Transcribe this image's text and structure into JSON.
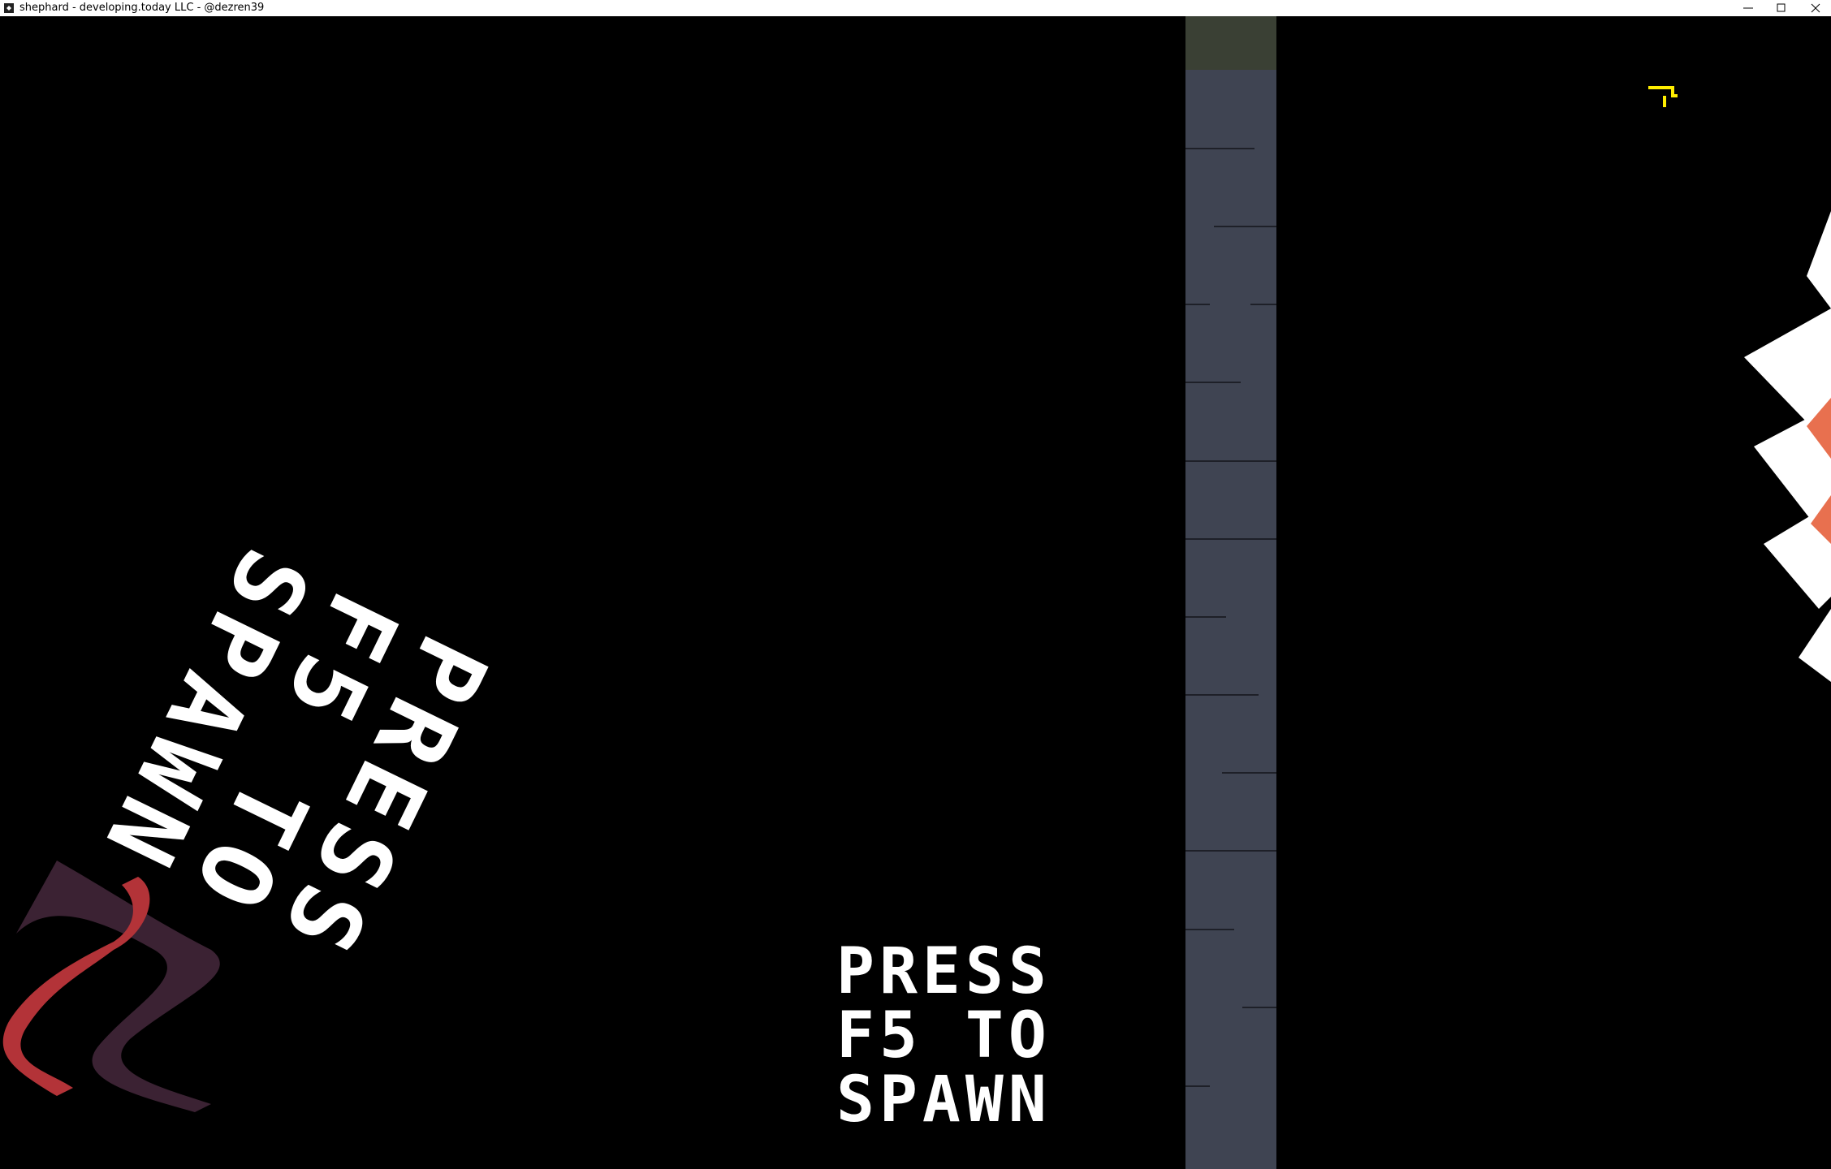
{
  "window": {
    "title": "shephard - developing.today LLC - @dezren39"
  },
  "prompt": {
    "lines": [
      "PRESS",
      "F5 TO",
      "SPAWN"
    ]
  },
  "rotated_prompt": {
    "lines": [
      "PRESS",
      "F5 TO",
      "SPAWN"
    ]
  }
}
